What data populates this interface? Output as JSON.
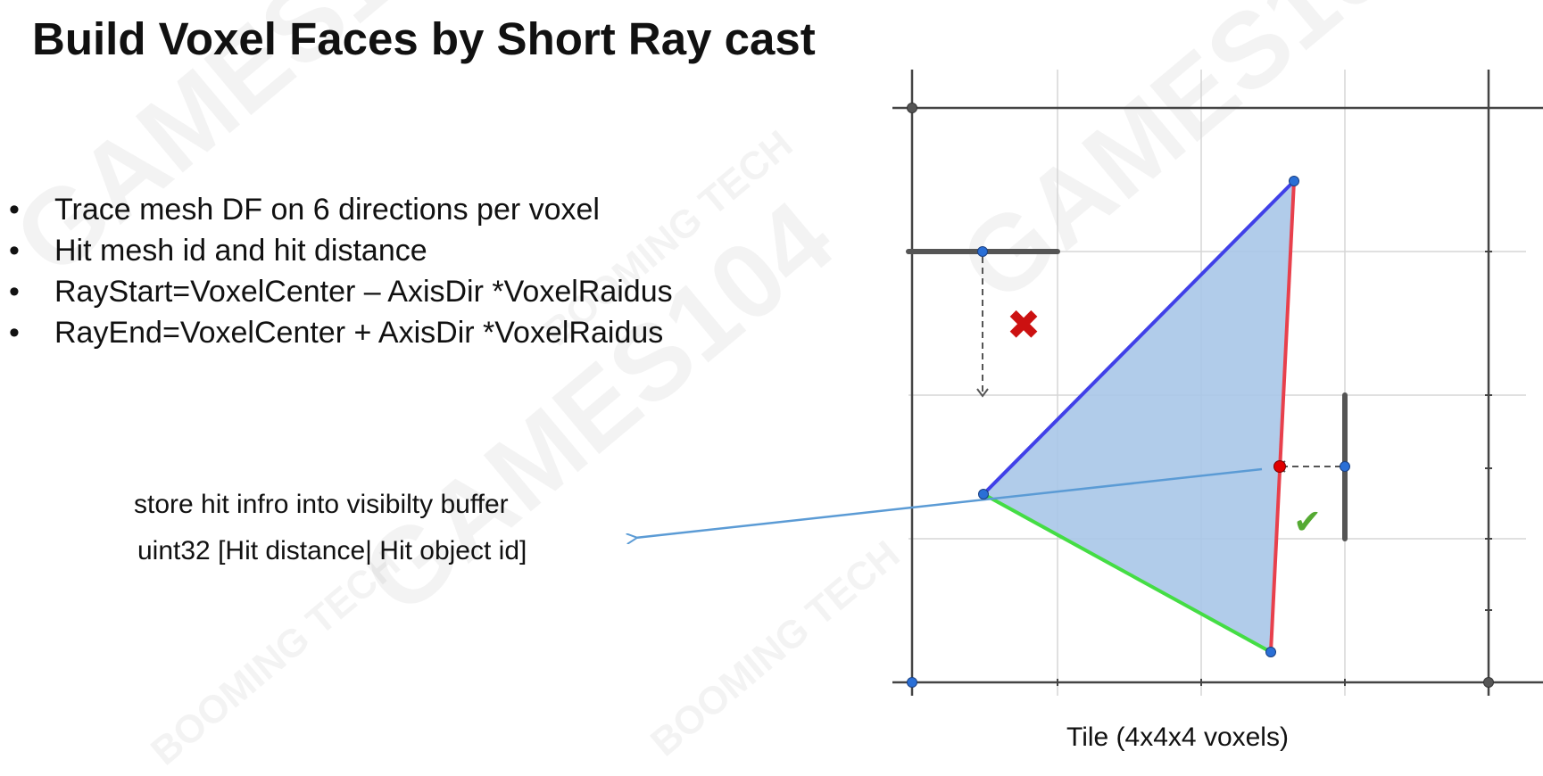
{
  "title": "Build Voxel Faces by Short Ray cast",
  "bullet_marker": "•",
  "bullets": [
    "Trace mesh DF on 6 directions per voxel",
    "Hit mesh id and hit distance",
    "RayStart=VoxelCenter – AxisDir *VoxelRaidus",
    "RayEnd=VoxelCenter + AxisDir *VoxelRaidus"
  ],
  "note": {
    "line1": "store hit infro into visibilty buffer",
    "line2": "uint32  [Hit distance| Hit object id]"
  },
  "diagram": {
    "caption": "Tile (4x4x4 voxels)",
    "miss_mark": "✖",
    "hit_mark": "✔",
    "colors": {
      "triangle_fill": "#a9c6e8",
      "edge_blue": "#4040e8",
      "edge_red": "#e8404c",
      "edge_green": "#44dd44",
      "vertex": "#2a6fd6",
      "hit_point": "#e00000",
      "miss_mark": "#cc1111",
      "hit_mark": "#55aa33",
      "arrow": "#5b9bd5",
      "grid": "#d6d6d6",
      "frame": "#444444"
    }
  },
  "watermarks": [
    "GAMES104",
    "BOOMING TECH"
  ]
}
